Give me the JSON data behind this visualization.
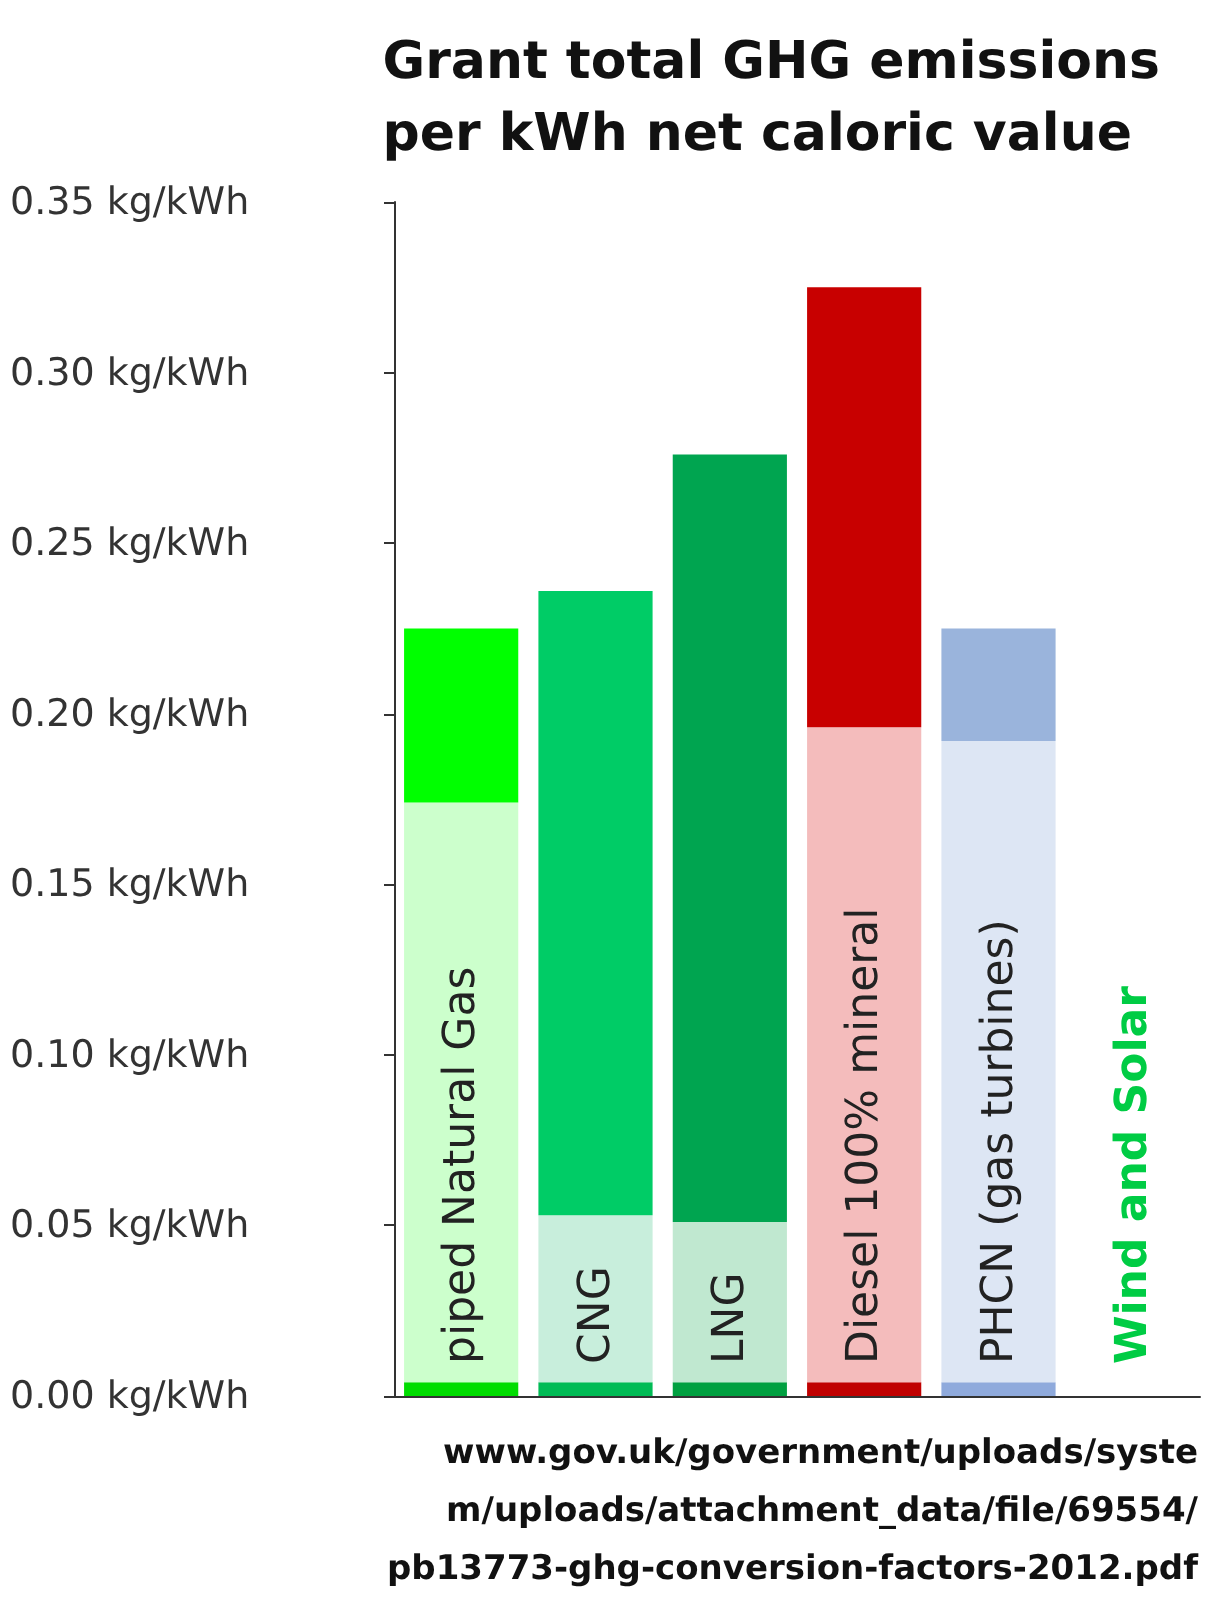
{
  "chart_data": {
    "type": "bar",
    "stacked": true,
    "title": "Grant total GHG emissions\nper kWh net caloric value",
    "categories": [
      "piped Natural Gas",
      "CNG",
      "LNG",
      "Diesel 100% mineral",
      "PHCN (gas turbines)",
      "Wind and Solar"
    ],
    "series": [
      {
        "colors": [
          "#00dd00",
          "#00bb55",
          "#00a040",
          "#c00000",
          "#8faadc",
          "#00cc44"
        ],
        "values": [
          0.004,
          0.004,
          0.004,
          0.004,
          0.004,
          0
        ]
      },
      {
        "colors": [
          "#ccffcc",
          "#c8eedc",
          "#c0e8d0",
          "#f4bcbc",
          "#dde6f4",
          "#00cc44"
        ],
        "values": [
          0.17,
          0.049,
          0.047,
          0.192,
          0.188,
          0
        ]
      },
      {
        "colors": [
          "#00ff00",
          "#00cc66",
          "#00a550",
          "#c80000",
          "#9ab4dc",
          "#00cc44"
        ],
        "values": [
          0.051,
          0.183,
          0.225,
          0.129,
          0.033,
          0
        ]
      }
    ],
    "ylim": [
      0,
      0.35
    ],
    "yticks": [
      {
        "value": 0,
        "label": "0.00 kg/kWh"
      },
      {
        "value": 0.05,
        "label": "0.05 kg/kWh"
      },
      {
        "value": 0.1,
        "label": "0.10 kg/kWh"
      },
      {
        "value": 0.15,
        "label": "0.15 kg/kWh"
      },
      {
        "value": 0.2,
        "label": "0.20 kg/kWh"
      },
      {
        "value": 0.25,
        "label": "0.25 kg/kWh"
      },
      {
        "value": 0.3,
        "label": "0.30 kg/kWh"
      },
      {
        "value": 0.35,
        "label": "0.35 kg/kWh"
      }
    ],
    "annotations": [
      "www.gov.uk/government/uploads/syste\nm/uploads/attachment_data/file/69554/\npb13773-ghg-conversion-factors-2012.pdf"
    ],
    "grid": false
  }
}
